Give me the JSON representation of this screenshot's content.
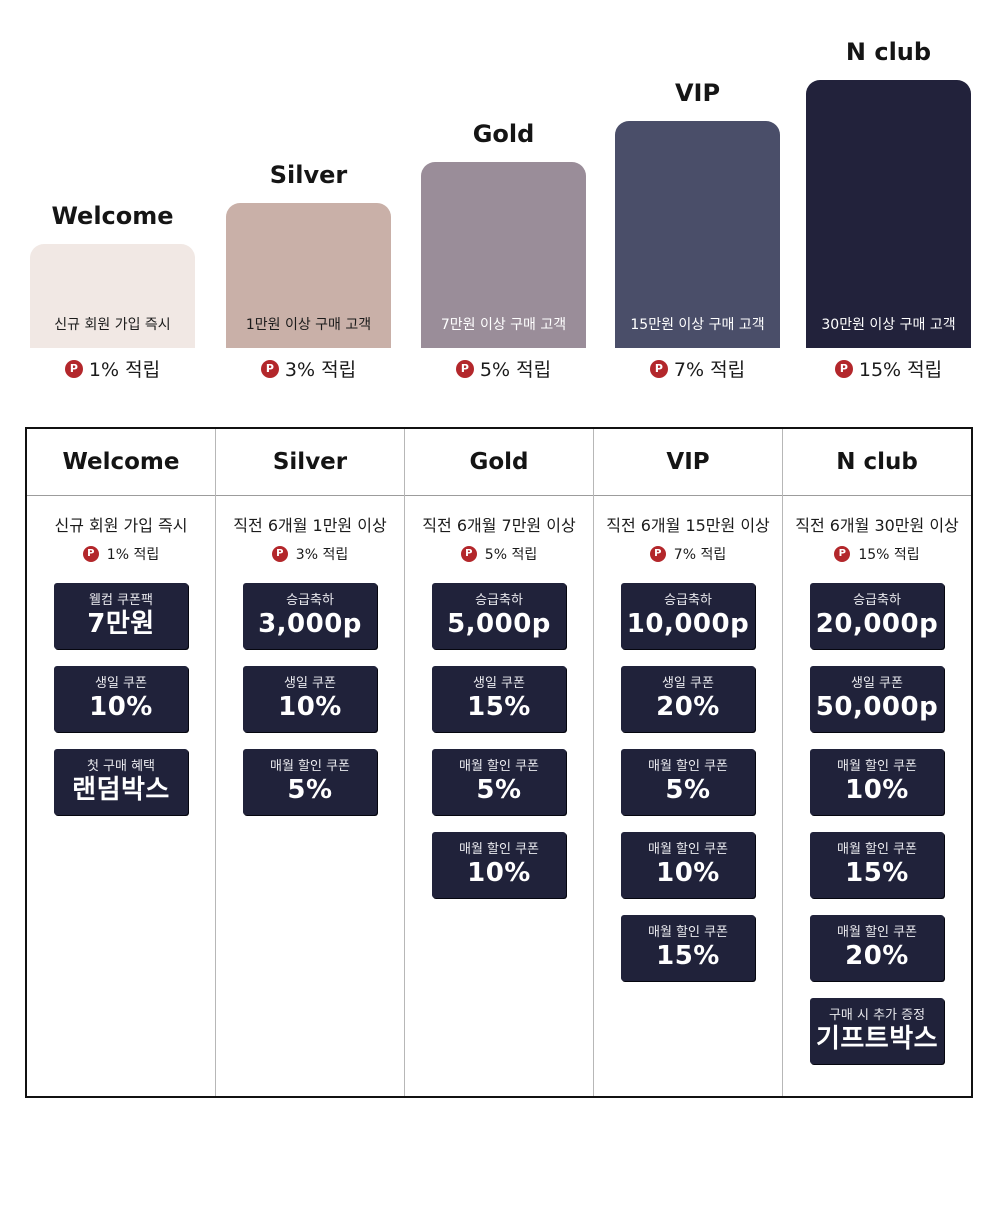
{
  "tiers": [
    {
      "name": "Welcome",
      "requirement": "신규 회원 가입 즉시",
      "rate": "1% 적립",
      "bar_color": "#f1e8e4",
      "text_color": "#1b1b1b"
    },
    {
      "name": "Silver",
      "requirement": "1만원 이상 구매 고객",
      "rate": "3% 적립",
      "bar_color": "#c9b0a8",
      "text_color": "#1b1b1b"
    },
    {
      "name": "Gold",
      "requirement": "7만원 이상 구매 고객",
      "rate": "5% 적립",
      "bar_color": "#9a8d99",
      "text_color": "#ffffff"
    },
    {
      "name": "VIP",
      "requirement": "15만원 이상 구매 고객",
      "rate": "7% 적립",
      "bar_color": "#4a4e69",
      "text_color": "#ffffff"
    },
    {
      "name": "N club",
      "requirement": "30만원 이상 구매 고객",
      "rate": "15% 적립",
      "bar_color": "#22223b",
      "text_color": "#ffffff"
    }
  ],
  "point_icon": "P",
  "table": [
    {
      "name": "Welcome",
      "condition": "신규 회원 가입 즉시",
      "rate": "1% 적립",
      "coupons": [
        {
          "label": "웰컴 쿠폰팩",
          "value": "7만원"
        },
        {
          "label": "생일 쿠폰",
          "value": "10%"
        },
        {
          "label": "첫 구매 혜택",
          "value": "랜덤박스"
        }
      ]
    },
    {
      "name": "Silver",
      "condition": "직전 6개월 1만원 이상",
      "rate": "3% 적립",
      "coupons": [
        {
          "label": "승급축하",
          "value": "3,000p"
        },
        {
          "label": "생일 쿠폰",
          "value": "10%"
        },
        {
          "label": "매월 할인 쿠폰",
          "value": "5%"
        }
      ]
    },
    {
      "name": "Gold",
      "condition": "직전 6개월 7만원 이상",
      "rate": "5% 적립",
      "coupons": [
        {
          "label": "승급축하",
          "value": "5,000p"
        },
        {
          "label": "생일 쿠폰",
          "value": "15%"
        },
        {
          "label": "매월 할인 쿠폰",
          "value": "5%"
        },
        {
          "label": "매월 할인 쿠폰",
          "value": "10%"
        }
      ]
    },
    {
      "name": "VIP",
      "condition": "직전 6개월 15만원 이상",
      "rate": "7% 적립",
      "coupons": [
        {
          "label": "승급축하",
          "value": "10,000p"
        },
        {
          "label": "생일 쿠폰",
          "value": "20%"
        },
        {
          "label": "매월 할인 쿠폰",
          "value": "5%"
        },
        {
          "label": "매월 할인 쿠폰",
          "value": "10%"
        },
        {
          "label": "매월 할인 쿠폰",
          "value": "15%"
        }
      ]
    },
    {
      "name": "N club",
      "condition": "직전 6개월 30만원 이상",
      "rate": "15% 적립",
      "coupons": [
        {
          "label": "승급축하",
          "value": "20,000p"
        },
        {
          "label": "생일 쿠폰",
          "value": "50,000p"
        },
        {
          "label": "매월 할인 쿠폰",
          "value": "10%"
        },
        {
          "label": "매월 할인 쿠폰",
          "value": "15%"
        },
        {
          "label": "매월 할인 쿠폰",
          "value": "20%"
        },
        {
          "label": "구매 시 추가 증정",
          "value": "기프트박스"
        }
      ]
    }
  ]
}
